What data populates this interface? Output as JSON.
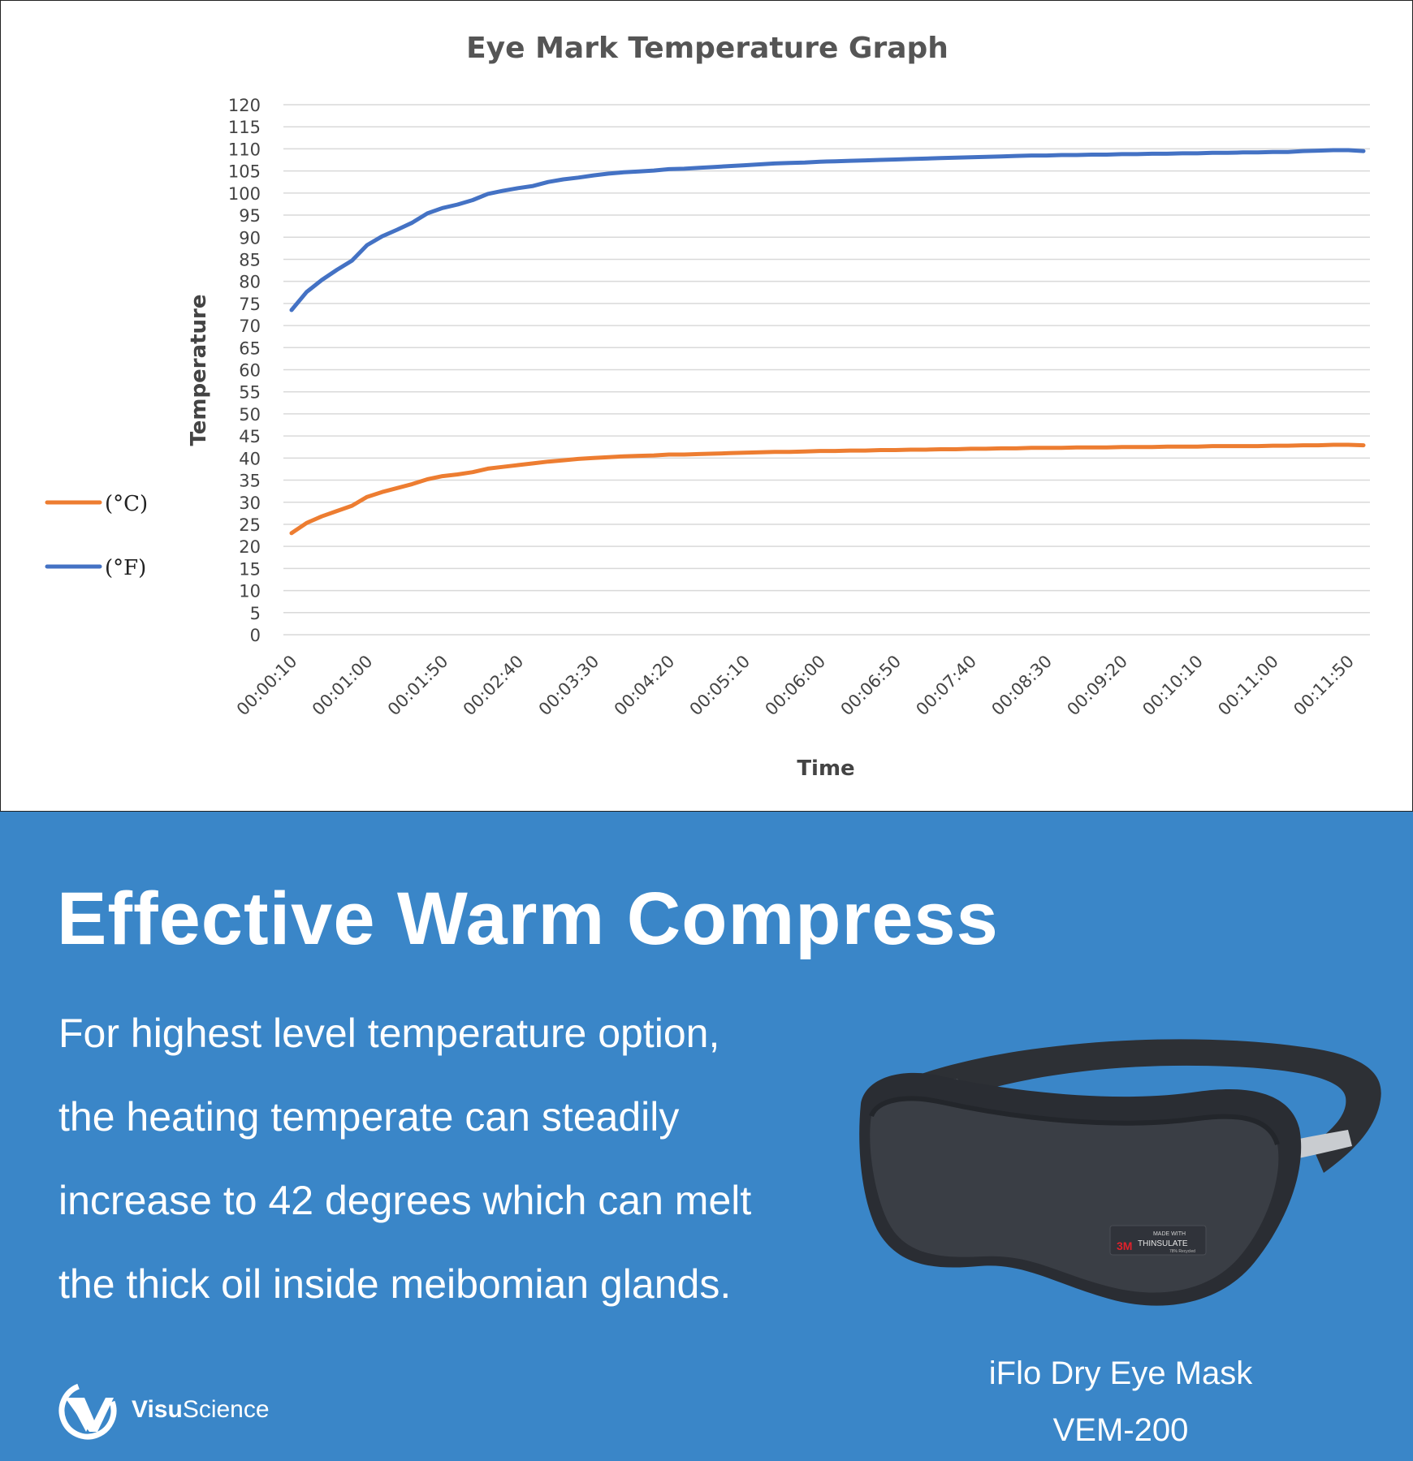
{
  "chart_data": {
    "type": "line",
    "title": "Eye Mark Temperature Graph",
    "xlabel": "Time",
    "ylabel": "Temperature",
    "ylim": [
      0,
      120
    ],
    "yticks": [
      0,
      5,
      10,
      15,
      20,
      25,
      30,
      35,
      40,
      45,
      50,
      55,
      60,
      65,
      70,
      75,
      80,
      85,
      90,
      95,
      100,
      105,
      110,
      115,
      120
    ],
    "grid": true,
    "legend_position": "left",
    "x": [
      "00:00:10",
      "00:00:20",
      "00:00:30",
      "00:00:40",
      "00:00:50",
      "00:01:00",
      "00:01:10",
      "00:01:20",
      "00:01:30",
      "00:01:40",
      "00:01:50",
      "00:02:00",
      "00:02:10",
      "00:02:20",
      "00:02:30",
      "00:02:40",
      "00:02:50",
      "00:03:00",
      "00:03:10",
      "00:03:20",
      "00:03:30",
      "00:03:40",
      "00:03:50",
      "00:04:00",
      "00:04:10",
      "00:04:20",
      "00:04:30",
      "00:04:40",
      "00:04:50",
      "00:05:00",
      "00:05:10",
      "00:05:20",
      "00:05:30",
      "00:05:40",
      "00:05:50",
      "00:06:00",
      "00:06:10",
      "00:06:20",
      "00:06:30",
      "00:06:40",
      "00:06:50",
      "00:07:00",
      "00:07:10",
      "00:07:20",
      "00:07:30",
      "00:07:40",
      "00:07:50",
      "00:08:00",
      "00:08:10",
      "00:08:20",
      "00:08:30",
      "00:08:40",
      "00:08:50",
      "00:09:00",
      "00:09:10",
      "00:09:20",
      "00:09:30",
      "00:09:40",
      "00:09:50",
      "00:10:00",
      "00:10:10",
      "00:10:20",
      "00:10:30",
      "00:10:40",
      "00:10:50",
      "00:11:00",
      "00:11:10",
      "00:11:20",
      "00:11:30",
      "00:11:40",
      "00:11:50",
      "00:12:00"
    ],
    "xtick_labels": [
      "00:00:10",
      "00:01:00",
      "00:01:50",
      "00:02:40",
      "00:03:30",
      "00:04:20",
      "00:05:10",
      "00:06:00",
      "00:06:50",
      "00:07:40",
      "00:08:30",
      "00:09:20",
      "00:10:10",
      "00:11:00",
      "00:11:50"
    ],
    "series": [
      {
        "name": "(°C)",
        "color": "#ed7d31",
        "values": [
          23.0,
          25.3,
          26.8,
          28.0,
          29.2,
          31.2,
          32.3,
          33.2,
          34.1,
          35.2,
          35.9,
          36.3,
          36.8,
          37.6,
          38.0,
          38.4,
          38.8,
          39.2,
          39.5,
          39.8,
          40.0,
          40.2,
          40.4,
          40.5,
          40.6,
          40.8,
          40.8,
          40.9,
          41.0,
          41.1,
          41.2,
          41.3,
          41.4,
          41.4,
          41.5,
          41.6,
          41.6,
          41.7,
          41.7,
          41.8,
          41.8,
          41.9,
          41.9,
          42.0,
          42.0,
          42.1,
          42.1,
          42.2,
          42.2,
          42.3,
          42.3,
          42.3,
          42.4,
          42.4,
          42.4,
          42.5,
          42.5,
          42.5,
          42.6,
          42.6,
          42.6,
          42.7,
          42.7,
          42.7,
          42.7,
          42.8,
          42.8,
          42.9,
          42.9,
          43.0,
          43.0,
          42.9
        ]
      },
      {
        "name": "(°F)",
        "color": "#4472c4",
        "values": [
          73.5,
          77.6,
          80.3,
          82.6,
          84.7,
          88.2,
          90.2,
          91.7,
          93.3,
          95.4,
          96.6,
          97.4,
          98.4,
          99.8,
          100.5,
          101.1,
          101.6,
          102.5,
          103.1,
          103.5,
          104.0,
          104.4,
          104.7,
          104.9,
          105.1,
          105.4,
          105.5,
          105.7,
          105.9,
          106.1,
          106.3,
          106.5,
          106.7,
          106.8,
          106.9,
          107.1,
          107.2,
          107.3,
          107.4,
          107.5,
          107.6,
          107.7,
          107.8,
          107.9,
          108.0,
          108.1,
          108.2,
          108.3,
          108.4,
          108.5,
          108.5,
          108.6,
          108.6,
          108.7,
          108.7,
          108.8,
          108.8,
          108.9,
          108.9,
          109.0,
          109.0,
          109.1,
          109.1,
          109.2,
          109.2,
          109.3,
          109.3,
          109.5,
          109.6,
          109.7,
          109.7,
          109.5
        ]
      }
    ]
  },
  "promo": {
    "headline": "Effective Warm Compress",
    "body_lines": [
      "For highest level temperature option,",
      "the heating temperate can steadily",
      "increase to 42 degrees which can melt",
      "the thick oil inside meibomian glands."
    ],
    "product_name": "iFlo Dry Eye Mask",
    "product_model": "VEM-200",
    "mask_brand_small": "MADE WITH",
    "mask_brand_mark": "3M",
    "mask_brand_name": "THINSULATE",
    "mask_brand_note": "78% Recycled",
    "logo_bold": "Visu",
    "logo_rest": "Science",
    "background_color": "#3a86c8"
  }
}
